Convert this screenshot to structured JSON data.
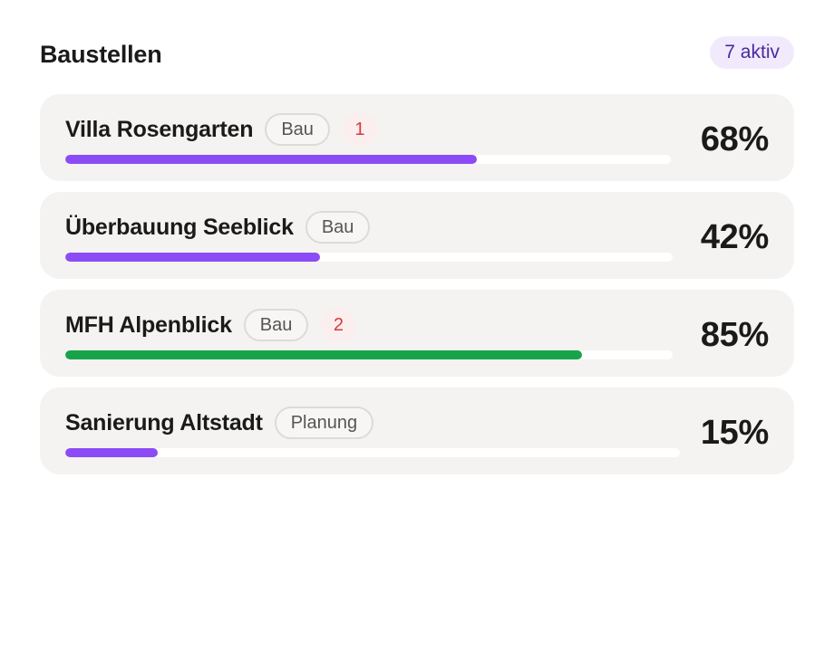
{
  "header": {
    "title": "Baustellen",
    "active_count": "7 aktiv"
  },
  "colors": {
    "progress_default": "#8c4cf5",
    "progress_complete_soon": "#17a34a",
    "alert_text": "#d93a3a"
  },
  "projects": [
    {
      "name": "Villa Rosengarten",
      "phase": "Bau",
      "alerts": "1",
      "progress_label": "68%",
      "progress": 0.68,
      "bar_color": "#8c4cf5"
    },
    {
      "name": "Überbauung Seeblick",
      "phase": "Bau",
      "alerts": null,
      "progress_label": "42%",
      "progress": 0.42,
      "bar_color": "#8c4cf5"
    },
    {
      "name": "MFH Alpenblick",
      "phase": "Bau",
      "alerts": "2",
      "progress_label": "85%",
      "progress": 0.85,
      "bar_color": "#17a34a"
    },
    {
      "name": "Sanierung Altstadt",
      "phase": "Planung",
      "alerts": null,
      "progress_label": "15%",
      "progress": 0.15,
      "bar_color": "#8c4cf5"
    }
  ]
}
